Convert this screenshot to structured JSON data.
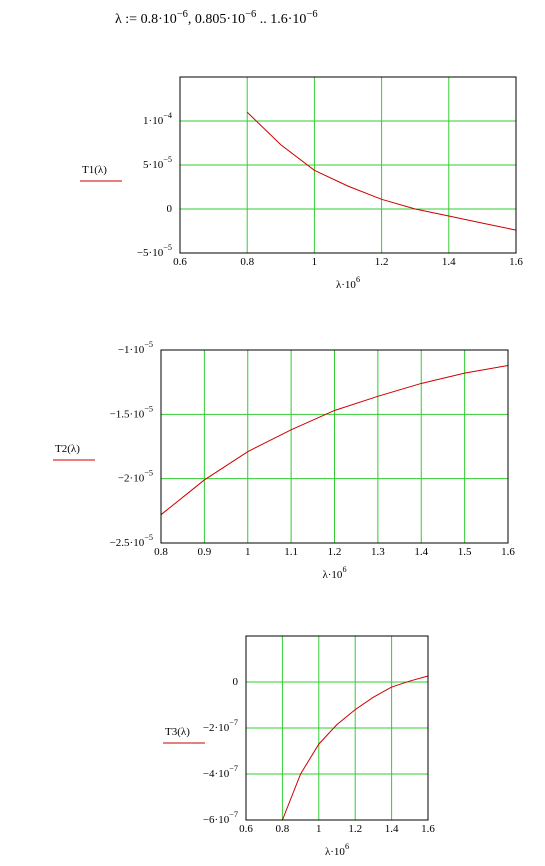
{
  "formula": "λ := 0.8·10−6, 0.805·10−6 .. 1.6·10−6",
  "chart_data": [
    {
      "type": "line",
      "ylabel": "T1(λ)",
      "xlabel": "λ·106",
      "color": "#cc0000",
      "grid": true,
      "x": [
        0.8,
        0.9,
        1.0,
        1.1,
        1.2,
        1.3,
        1.4,
        1.5,
        1.6
      ],
      "values": [
        0.00011,
        7.3e-05,
        4.4e-05,
        2.6e-05,
        1.1e-05,
        0,
        -8e-06,
        -1.6e-05,
        -2.4e-05
      ],
      "xlim": [
        0.6,
        1.6
      ],
      "xticks": [
        0.6,
        0.8,
        1,
        1.2,
        1.4,
        1.6
      ],
      "ylim": [
        -5e-05,
        0.00015
      ],
      "yticks": [
        {
          "value": 0.0001,
          "label": "1·10−4"
        },
        {
          "value": 5e-05,
          "label": "5·10−5"
        },
        0,
        {
          "value": -5e-05,
          "label": "−5·10−5"
        }
      ]
    },
    {
      "type": "line",
      "ylabel": "T2(λ)",
      "xlabel": "λ·106",
      "color": "#cc0000",
      "grid": true,
      "x": [
        0.8,
        0.9,
        1.0,
        1.1,
        1.2,
        1.3,
        1.4,
        1.5,
        1.6
      ],
      "values": [
        -2.28e-05,
        -2.01e-05,
        -1.79e-05,
        -1.62e-05,
        -1.47e-05,
        -1.36e-05,
        -1.26e-05,
        -1.18e-05,
        -1.12e-05
      ],
      "xlim": [
        0.8,
        1.6
      ],
      "xticks": [
        0.8,
        0.9,
        1,
        1.1,
        1.2,
        1.3,
        1.4,
        1.5,
        1.6
      ],
      "ylim": [
        -2.5e-05,
        -1e-05
      ],
      "yticks": [
        {
          "value": -1e-05,
          "label": "−1·10−5"
        },
        {
          "value": -1.5e-05,
          "label": "−1.5·10−5"
        },
        {
          "value": -2e-05,
          "label": "−2·10−5"
        },
        {
          "value": -2.5e-05,
          "label": "−2.5·10−5"
        }
      ]
    },
    {
      "type": "line",
      "ylabel": "T3(λ)",
      "xlabel": "λ·106",
      "color": "#cc0000",
      "grid": true,
      "x": [
        0.8,
        0.9,
        1.0,
        1.1,
        1.2,
        1.3,
        1.4,
        1.5,
        1.6
      ],
      "values": [
        -6e-07,
        -4e-07,
        -2.7e-07,
        -1.85e-07,
        -1.2e-07,
        -6.6e-08,
        -2.2e-08,
        4e-09,
        2.6e-08
      ],
      "xlim": [
        0.6,
        1.6
      ],
      "xticks": [
        0.6,
        0.8,
        1,
        1.2,
        1.4,
        1.6
      ],
      "ylim": [
        -6e-07,
        2e-07
      ],
      "yticks": [
        0,
        {
          "value": -2e-07,
          "label": "−2·10−7"
        },
        {
          "value": -4e-07,
          "label": "−4·10−7"
        },
        {
          "value": -6e-07,
          "label": "−6·10−7"
        }
      ]
    }
  ]
}
